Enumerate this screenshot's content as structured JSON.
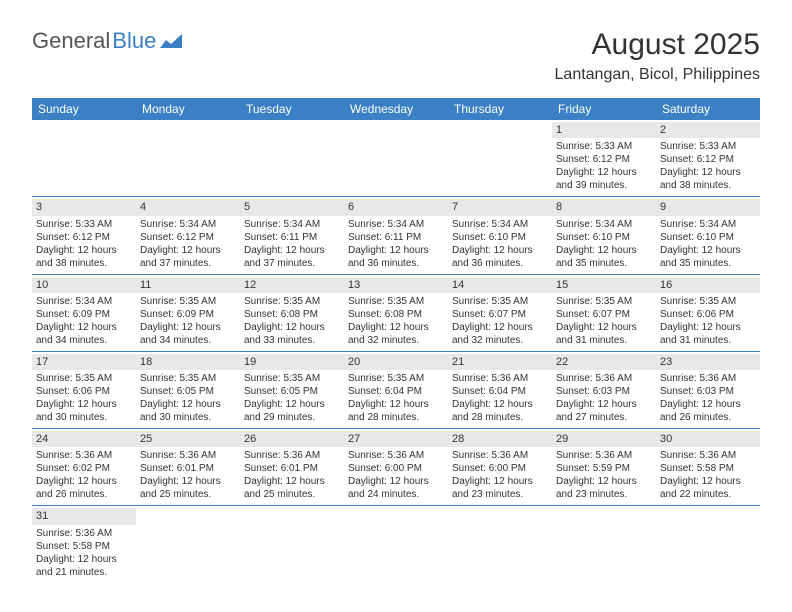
{
  "logo": {
    "part1": "General",
    "part2": "Blue"
  },
  "title": "August 2025",
  "location": "Lantangan, Bicol, Philippines",
  "colors": {
    "header_bar": "#3b7fc4",
    "daynum_bg": "#e8e8e8",
    "row_border": "#3b7fc4",
    "text": "#333333",
    "logo_gray": "#555555",
    "logo_blue": "#3b7fc4",
    "background": "#ffffff"
  },
  "typography": {
    "title_fontsize": 30,
    "location_fontsize": 16,
    "weekday_fontsize": 12,
    "cell_fontsize": 10,
    "logo_fontsize": 22
  },
  "weekdays": [
    "Sunday",
    "Monday",
    "Tuesday",
    "Wednesday",
    "Thursday",
    "Friday",
    "Saturday"
  ],
  "weeks": [
    [
      null,
      null,
      null,
      null,
      null,
      {
        "n": "1",
        "sr": "5:33 AM",
        "ss": "6:12 PM",
        "dl": "12 hours and 39 minutes."
      },
      {
        "n": "2",
        "sr": "5:33 AM",
        "ss": "6:12 PM",
        "dl": "12 hours and 38 minutes."
      }
    ],
    [
      {
        "n": "3",
        "sr": "5:33 AM",
        "ss": "6:12 PM",
        "dl": "12 hours and 38 minutes."
      },
      {
        "n": "4",
        "sr": "5:34 AM",
        "ss": "6:12 PM",
        "dl": "12 hours and 37 minutes."
      },
      {
        "n": "5",
        "sr": "5:34 AM",
        "ss": "6:11 PM",
        "dl": "12 hours and 37 minutes."
      },
      {
        "n": "6",
        "sr": "5:34 AM",
        "ss": "6:11 PM",
        "dl": "12 hours and 36 minutes."
      },
      {
        "n": "7",
        "sr": "5:34 AM",
        "ss": "6:10 PM",
        "dl": "12 hours and 36 minutes."
      },
      {
        "n": "8",
        "sr": "5:34 AM",
        "ss": "6:10 PM",
        "dl": "12 hours and 35 minutes."
      },
      {
        "n": "9",
        "sr": "5:34 AM",
        "ss": "6:10 PM",
        "dl": "12 hours and 35 minutes."
      }
    ],
    [
      {
        "n": "10",
        "sr": "5:34 AM",
        "ss": "6:09 PM",
        "dl": "12 hours and 34 minutes."
      },
      {
        "n": "11",
        "sr": "5:35 AM",
        "ss": "6:09 PM",
        "dl": "12 hours and 34 minutes."
      },
      {
        "n": "12",
        "sr": "5:35 AM",
        "ss": "6:08 PM",
        "dl": "12 hours and 33 minutes."
      },
      {
        "n": "13",
        "sr": "5:35 AM",
        "ss": "6:08 PM",
        "dl": "12 hours and 32 minutes."
      },
      {
        "n": "14",
        "sr": "5:35 AM",
        "ss": "6:07 PM",
        "dl": "12 hours and 32 minutes."
      },
      {
        "n": "15",
        "sr": "5:35 AM",
        "ss": "6:07 PM",
        "dl": "12 hours and 31 minutes."
      },
      {
        "n": "16",
        "sr": "5:35 AM",
        "ss": "6:06 PM",
        "dl": "12 hours and 31 minutes."
      }
    ],
    [
      {
        "n": "17",
        "sr": "5:35 AM",
        "ss": "6:06 PM",
        "dl": "12 hours and 30 minutes."
      },
      {
        "n": "18",
        "sr": "5:35 AM",
        "ss": "6:05 PM",
        "dl": "12 hours and 30 minutes."
      },
      {
        "n": "19",
        "sr": "5:35 AM",
        "ss": "6:05 PM",
        "dl": "12 hours and 29 minutes."
      },
      {
        "n": "20",
        "sr": "5:35 AM",
        "ss": "6:04 PM",
        "dl": "12 hours and 28 minutes."
      },
      {
        "n": "21",
        "sr": "5:36 AM",
        "ss": "6:04 PM",
        "dl": "12 hours and 28 minutes."
      },
      {
        "n": "22",
        "sr": "5:36 AM",
        "ss": "6:03 PM",
        "dl": "12 hours and 27 minutes."
      },
      {
        "n": "23",
        "sr": "5:36 AM",
        "ss": "6:03 PM",
        "dl": "12 hours and 26 minutes."
      }
    ],
    [
      {
        "n": "24",
        "sr": "5:36 AM",
        "ss": "6:02 PM",
        "dl": "12 hours and 26 minutes."
      },
      {
        "n": "25",
        "sr": "5:36 AM",
        "ss": "6:01 PM",
        "dl": "12 hours and 25 minutes."
      },
      {
        "n": "26",
        "sr": "5:36 AM",
        "ss": "6:01 PM",
        "dl": "12 hours and 25 minutes."
      },
      {
        "n": "27",
        "sr": "5:36 AM",
        "ss": "6:00 PM",
        "dl": "12 hours and 24 minutes."
      },
      {
        "n": "28",
        "sr": "5:36 AM",
        "ss": "6:00 PM",
        "dl": "12 hours and 23 minutes."
      },
      {
        "n": "29",
        "sr": "5:36 AM",
        "ss": "5:59 PM",
        "dl": "12 hours and 23 minutes."
      },
      {
        "n": "30",
        "sr": "5:36 AM",
        "ss": "5:58 PM",
        "dl": "12 hours and 22 minutes."
      }
    ],
    [
      {
        "n": "31",
        "sr": "5:36 AM",
        "ss": "5:58 PM",
        "dl": "12 hours and 21 minutes."
      },
      null,
      null,
      null,
      null,
      null,
      null
    ]
  ],
  "labels": {
    "sunrise_prefix": "Sunrise: ",
    "sunset_prefix": "Sunset: ",
    "daylight_prefix": "Daylight: "
  }
}
